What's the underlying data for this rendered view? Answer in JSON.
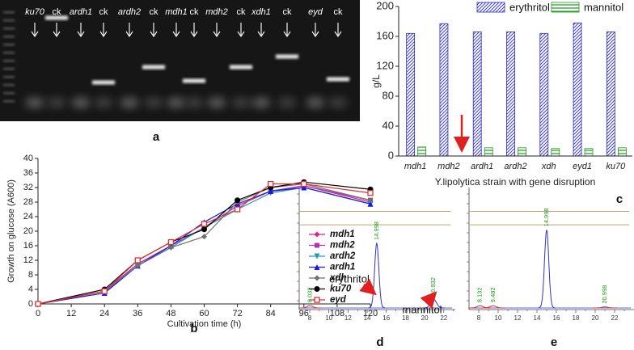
{
  "gel": {
    "panel": "a",
    "lanes": [
      "ku70",
      "ck",
      "ardh1",
      "ck",
      "ardh2",
      "ck",
      "mdh1",
      "ck",
      "mdh2",
      "ck",
      "xdh1",
      "ck",
      "eyd",
      "ck"
    ]
  },
  "chart_data": [
    {
      "type": "line",
      "panel": "b",
      "xlabel": "Cultivation time (h)",
      "ylabel": "Growth on glucose (A600)",
      "x": [
        0,
        24,
        36,
        48,
        60,
        72,
        84,
        96,
        120
      ],
      "xlim": [
        0,
        120
      ],
      "xticks": [
        0,
        12,
        24,
        36,
        48,
        60,
        72,
        84,
        96,
        108,
        120
      ],
      "ylim": [
        0,
        40
      ],
      "yticks": [
        0,
        4,
        8,
        12,
        16,
        20,
        24,
        28,
        32,
        36,
        40
      ],
      "legend": "lower right",
      "series": [
        {
          "name": "mdh1",
          "color": "#e0208c",
          "marker": "diamond",
          "values": [
            0,
            3.5,
            11,
            16,
            21,
            27,
            31,
            32.5,
            28
          ]
        },
        {
          "name": "mdh2",
          "color": "#b030c0",
          "marker": "square",
          "values": [
            0,
            3.5,
            11,
            16,
            21,
            27,
            31,
            32.5,
            28.5
          ]
        },
        {
          "name": "ardh2",
          "color": "#20a0a8",
          "marker": "triangle-down",
          "values": [
            0,
            3,
            10.5,
            15.5,
            21,
            26,
            30.5,
            32,
            27.5
          ]
        },
        {
          "name": "ardh1",
          "color": "#1818e0",
          "marker": "triangle-up",
          "values": [
            0,
            3,
            10.5,
            16,
            22.5,
            27.5,
            31,
            32,
            27.5
          ]
        },
        {
          "name": "xdh",
          "color": "#707070",
          "marker": "diamond",
          "values": [
            0,
            3.5,
            10.5,
            15.5,
            18.5,
            28,
            32,
            33,
            28.5
          ]
        },
        {
          "name": "ku70",
          "color": "#000000",
          "marker": "circle",
          "values": [
            0,
            4,
            12,
            17,
            20.5,
            28.5,
            32,
            33.5,
            31.5
          ]
        },
        {
          "name": "eyd",
          "color": "#e03030",
          "marker": "open-square",
          "values": [
            0,
            3.5,
            12,
            17,
            22,
            26,
            33,
            33,
            30.5
          ]
        }
      ]
    },
    {
      "type": "bar",
      "panel": "c",
      "ylabel": "g/L",
      "xlabel": "Y.lipolytica strain with gene disruption",
      "categories": [
        "mdh1",
        "mdh2",
        "ardh1",
        "ardh2",
        "xdh",
        "eyd1",
        "ku70"
      ],
      "ylim": [
        0,
        200
      ],
      "yticks": [
        0,
        40,
        80,
        120,
        160,
        200
      ],
      "legend": "upper right",
      "series": [
        {
          "name": "erythritol",
          "color": "#2a2ac0",
          "values": [
            164,
            177,
            166,
            166,
            164,
            178,
            166
          ]
        },
        {
          "name": "mannitol",
          "color": "#1a9a1a",
          "values": [
            12,
            null,
            11,
            11,
            10,
            10,
            11
          ]
        }
      ]
    },
    {
      "type": "chromatogram",
      "panel": "d",
      "xlim": [
        6.9,
        23.2
      ],
      "xticks": [
        8,
        10,
        12,
        14,
        16,
        18,
        20,
        22
      ],
      "ylim": [
        0,
        100
      ],
      "hlines": [
        88,
        76
      ],
      "annotations": [
        "erythritol",
        "mannitol"
      ],
      "peaks": [
        {
          "x": 8.032,
          "height": 2
        },
        {
          "x": 14.998,
          "height": 58
        },
        {
          "x": 20.932,
          "height": 8
        }
      ]
    },
    {
      "type": "chromatogram",
      "panel": "e",
      "xlim": [
        7,
        24
      ],
      "xticks": [
        8,
        10,
        12,
        14,
        16,
        18,
        20,
        22
      ],
      "ylim": [
        0,
        100
      ],
      "hlines": [
        88,
        76
      ],
      "peaks": [
        {
          "x": 8.132,
          "height": 2
        },
        {
          "x": 9.482,
          "height": 2
        },
        {
          "x": 14.998,
          "height": 70
        },
        {
          "x": 20.998,
          "height": 1
        }
      ]
    }
  ]
}
